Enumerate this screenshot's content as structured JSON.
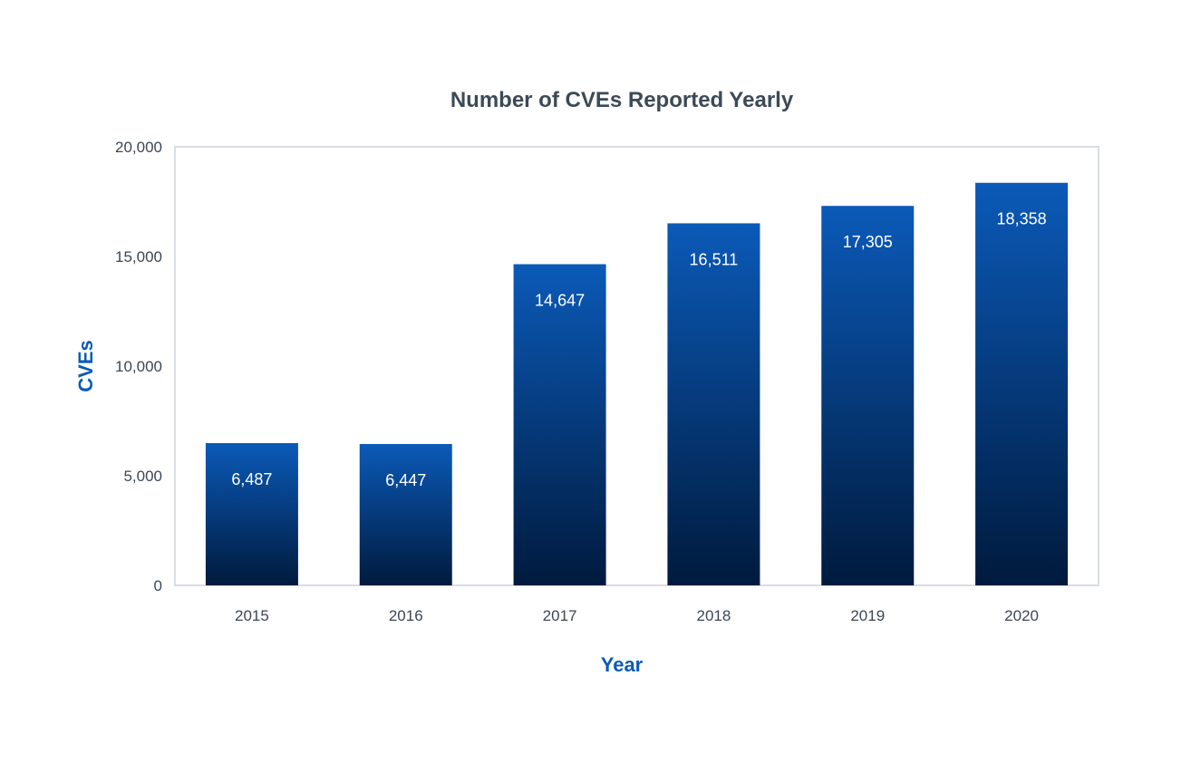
{
  "chart_data": {
    "type": "bar",
    "title": "Number of CVEs Reported Yearly",
    "xlabel": "Year",
    "ylabel": "CVEs",
    "categories": [
      "2015",
      "2016",
      "2017",
      "2018",
      "2019",
      "2020"
    ],
    "values": [
      6487,
      6447,
      14647,
      16511,
      17305,
      18358
    ],
    "value_labels": [
      "6,487",
      "6,447",
      "14,647",
      "16,511",
      "17,305",
      "18,358"
    ],
    "ylim": [
      0,
      20000
    ],
    "yticks": [
      0,
      5000,
      10000,
      15000,
      20000
    ],
    "ytick_labels": [
      "0",
      "5,000",
      "10,000",
      "15,000",
      "20,000"
    ],
    "grid": false,
    "legend": "none",
    "colors": {
      "bar_top": "#0b5ab8",
      "bar_bottom": "#001a3d",
      "frame": "#d9dde2",
      "title": "#3c4a57",
      "axis_title": "#0b5bb5",
      "tick_text": "#3c4654",
      "bar_label": "#ffffff"
    }
  }
}
